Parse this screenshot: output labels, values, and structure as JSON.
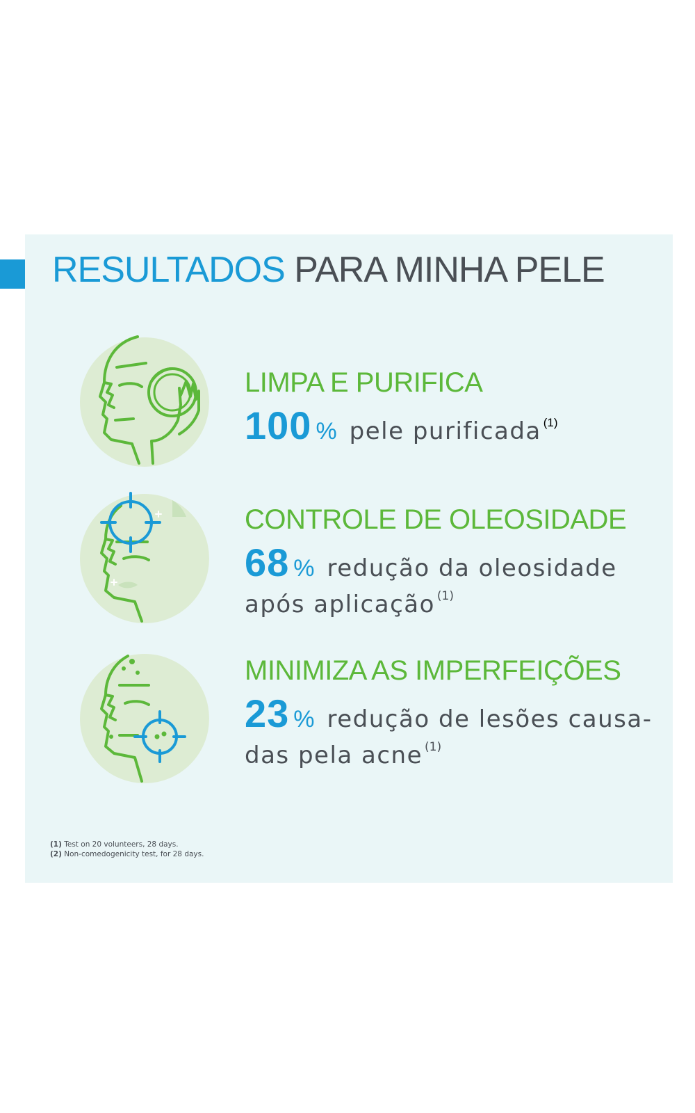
{
  "header": {
    "title_highlight": "RESULTADOS",
    "title_rest": "PARA MINHA PELE"
  },
  "benefits": [
    {
      "title": "LIMPA E PURIFICA",
      "number": "100",
      "percent": "%",
      "desc_line1": "pele purificada",
      "desc_line2": "",
      "note": "(1)",
      "icon": "face-cleansing-pad-icon"
    },
    {
      "title": "CONTROLE DE OLEOSIDADE",
      "number": "68",
      "percent": "%",
      "desc_line1": "redução da oleosidade",
      "desc_line2": "após aplicação",
      "note": "(1)",
      "icon": "face-target-oil-icon"
    },
    {
      "title": "MINIMIZA AS IMPERFEIÇÕES",
      "number": "23",
      "percent": "%",
      "desc_line1": "redução de lesões causa-",
      "desc_line2": "das pela acne",
      "note": "(1)",
      "icon": "face-target-blemish-icon"
    }
  ],
  "footnotes": [
    {
      "mark": "(1)",
      "text": "Test on 20 volunteers, 28 days."
    },
    {
      "mark": "(2)",
      "text": "Non-comedogenicity test, for 28 days."
    }
  ],
  "colors": {
    "accent_blue": "#1a9ad6",
    "accent_green": "#5cb83a",
    "panel_bg": "#eaf6f7",
    "text_gray": "#4a4f55"
  }
}
